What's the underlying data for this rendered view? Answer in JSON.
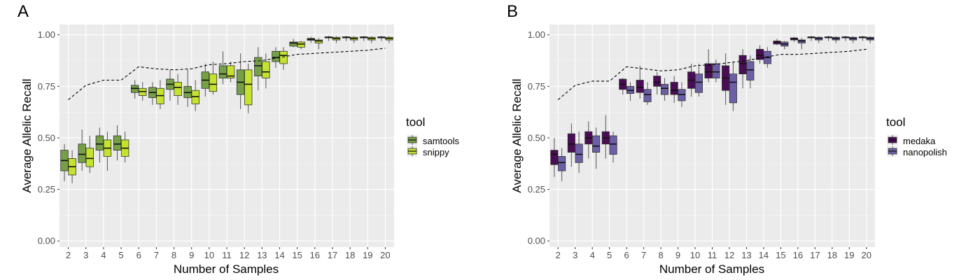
{
  "chart_data": [
    {
      "type": "box",
      "panel_label": "A",
      "xlabel": "Number of Samples",
      "ylabel": "Average Allelic Recall",
      "ylim": [
        -0.03,
        1.05
      ],
      "yticks": [
        "0.00",
        "0.25",
        "0.50",
        "0.75",
        "1.00"
      ],
      "categories": [
        "2",
        "3",
        "4",
        "5",
        "6",
        "7",
        "8",
        "9",
        "10",
        "11",
        "12",
        "13",
        "14",
        "15",
        "16",
        "17",
        "18",
        "19",
        "20"
      ],
      "legend": {
        "title": "tool",
        "placement": "right"
      },
      "series": [
        {
          "name": "samtools",
          "color": "#76a045",
          "boxes": [
            {
              "min": 0.29,
              "q1": 0.34,
              "median": 0.39,
              "q3": 0.44,
              "max": 0.47
            },
            {
              "min": 0.34,
              "q1": 0.38,
              "median": 0.42,
              "q3": 0.47,
              "max": 0.54
            },
            {
              "min": 0.38,
              "q1": 0.44,
              "median": 0.47,
              "q3": 0.51,
              "max": 0.55
            },
            {
              "min": 0.39,
              "q1": 0.44,
              "median": 0.47,
              "q3": 0.51,
              "max": 0.56
            },
            {
              "min": 0.69,
              "q1": 0.72,
              "median": 0.74,
              "q3": 0.755,
              "max": 0.78
            },
            {
              "min": 0.66,
              "q1": 0.695,
              "median": 0.72,
              "q3": 0.745,
              "max": 0.77
            },
            {
              "min": 0.68,
              "q1": 0.735,
              "median": 0.76,
              "q3": 0.785,
              "max": 0.83
            },
            {
              "min": 0.65,
              "q1": 0.695,
              "median": 0.72,
              "q3": 0.75,
              "max": 0.83
            },
            {
              "min": 0.7,
              "q1": 0.74,
              "median": 0.78,
              "q3": 0.82,
              "max": 0.86
            },
            {
              "min": 0.76,
              "q1": 0.79,
              "median": 0.81,
              "q3": 0.85,
              "max": 0.92
            },
            {
              "min": 0.64,
              "q1": 0.71,
              "median": 0.77,
              "q3": 0.83,
              "max": 0.91
            },
            {
              "min": 0.73,
              "q1": 0.8,
              "median": 0.85,
              "q3": 0.89,
              "max": 0.94
            },
            {
              "min": 0.84,
              "q1": 0.87,
              "median": 0.89,
              "q3": 0.92,
              "max": 0.94
            },
            {
              "min": 0.94,
              "q1": 0.945,
              "median": 0.96,
              "q3": 0.965,
              "max": 0.98
            },
            {
              "min": 0.96,
              "q1": 0.973,
              "median": 0.978,
              "q3": 0.983,
              "max": 0.99
            },
            {
              "min": 0.97,
              "q1": 0.985,
              "median": 0.988,
              "q3": 0.99,
              "max": 0.995
            },
            {
              "min": 0.97,
              "q1": 0.985,
              "median": 0.988,
              "q3": 0.99,
              "max": 0.995
            },
            {
              "min": 0.97,
              "q1": 0.985,
              "median": 0.988,
              "q3": 0.99,
              "max": 0.995
            },
            {
              "min": 0.97,
              "q1": 0.985,
              "median": 0.988,
              "q3": 0.99,
              "max": 0.995
            }
          ]
        },
        {
          "name": "snippy",
          "color": "#c5e32e",
          "boxes": [
            {
              "min": 0.28,
              "q1": 0.32,
              "median": 0.36,
              "q3": 0.4,
              "max": 0.44
            },
            {
              "min": 0.33,
              "q1": 0.36,
              "median": 0.4,
              "q3": 0.45,
              "max": 0.51
            },
            {
              "min": 0.34,
              "q1": 0.41,
              "median": 0.45,
              "q3": 0.49,
              "max": 0.53
            },
            {
              "min": 0.38,
              "q1": 0.41,
              "median": 0.45,
              "q3": 0.49,
              "max": 0.53
            },
            {
              "min": 0.68,
              "q1": 0.705,
              "median": 0.725,
              "q3": 0.74,
              "max": 0.77
            },
            {
              "min": 0.64,
              "q1": 0.665,
              "median": 0.705,
              "q3": 0.74,
              "max": 0.78
            },
            {
              "min": 0.66,
              "q1": 0.705,
              "median": 0.745,
              "q3": 0.77,
              "max": 0.81
            },
            {
              "min": 0.63,
              "q1": 0.665,
              "median": 0.7,
              "q3": 0.73,
              "max": 0.78
            },
            {
              "min": 0.71,
              "q1": 0.725,
              "median": 0.76,
              "q3": 0.81,
              "max": 0.87
            },
            {
              "min": 0.77,
              "q1": 0.79,
              "median": 0.8,
              "q3": 0.85,
              "max": 0.87
            },
            {
              "min": 0.62,
              "q1": 0.66,
              "median": 0.76,
              "q3": 0.83,
              "max": 0.86
            },
            {
              "min": 0.74,
              "q1": 0.79,
              "median": 0.82,
              "q3": 0.87,
              "max": 0.91
            },
            {
              "min": 0.83,
              "q1": 0.86,
              "median": 0.9,
              "q3": 0.92,
              "max": 0.94
            },
            {
              "min": 0.93,
              "q1": 0.94,
              "median": 0.955,
              "q3": 0.965,
              "max": 0.97
            },
            {
              "min": 0.93,
              "q1": 0.96,
              "median": 0.97,
              "q3": 0.975,
              "max": 0.985
            },
            {
              "min": 0.96,
              "q1": 0.975,
              "median": 0.982,
              "q3": 0.988,
              "max": 0.993
            },
            {
              "min": 0.96,
              "q1": 0.975,
              "median": 0.982,
              "q3": 0.988,
              "max": 0.993
            },
            {
              "min": 0.96,
              "q1": 0.975,
              "median": 0.982,
              "q3": 0.988,
              "max": 0.993
            },
            {
              "min": 0.96,
              "q1": 0.975,
              "median": 0.982,
              "q3": 0.988,
              "max": 0.993
            }
          ]
        }
      ],
      "reference_line": {
        "style": "dashed",
        "values": [
          0.685,
          0.755,
          0.78,
          0.78,
          0.845,
          0.835,
          0.83,
          0.835,
          0.855,
          0.86,
          0.87,
          0.875,
          0.89,
          0.905,
          0.91,
          0.915,
          0.92,
          0.925,
          0.935
        ]
      }
    },
    {
      "type": "box",
      "panel_label": "B",
      "xlabel": "Number of Samples",
      "ylabel": "Average Allelic Recall",
      "ylim": [
        -0.03,
        1.05
      ],
      "yticks": [
        "0.00",
        "0.25",
        "0.50",
        "0.75",
        "1.00"
      ],
      "categories": [
        "2",
        "3",
        "4",
        "5",
        "6",
        "7",
        "8",
        "9",
        "10",
        "11",
        "12",
        "13",
        "14",
        "15",
        "16",
        "17",
        "18",
        "19",
        "20"
      ],
      "legend": {
        "title": "tool",
        "placement": "right"
      },
      "series": [
        {
          "name": "medaka",
          "color": "#4a0c55",
          "boxes": [
            {
              "min": 0.31,
              "q1": 0.37,
              "median": 0.42,
              "q3": 0.44,
              "max": 0.5
            },
            {
              "min": 0.36,
              "q1": 0.43,
              "median": 0.47,
              "q3": 0.52,
              "max": 0.57
            },
            {
              "min": 0.4,
              "q1": 0.47,
              "median": 0.5,
              "q3": 0.53,
              "max": 0.58
            },
            {
              "min": 0.4,
              "q1": 0.47,
              "median": 0.5,
              "q3": 0.53,
              "max": 0.61
            },
            {
              "min": 0.71,
              "q1": 0.735,
              "median": 0.76,
              "q3": 0.785,
              "max": 0.79
            },
            {
              "min": 0.69,
              "q1": 0.72,
              "median": 0.745,
              "q3": 0.78,
              "max": 0.85
            },
            {
              "min": 0.71,
              "q1": 0.75,
              "median": 0.77,
              "q3": 0.8,
              "max": 0.82
            },
            {
              "min": 0.67,
              "q1": 0.71,
              "median": 0.73,
              "q3": 0.77,
              "max": 0.8
            },
            {
              "min": 0.7,
              "q1": 0.74,
              "median": 0.78,
              "q3": 0.82,
              "max": 0.86
            },
            {
              "min": 0.77,
              "q1": 0.79,
              "median": 0.82,
              "q3": 0.86,
              "max": 0.93
            },
            {
              "min": 0.66,
              "q1": 0.73,
              "median": 0.79,
              "q3": 0.85,
              "max": 0.91
            },
            {
              "min": 0.74,
              "q1": 0.81,
              "median": 0.86,
              "q3": 0.9,
              "max": 0.93
            },
            {
              "min": 0.86,
              "q1": 0.88,
              "median": 0.9,
              "q3": 0.93,
              "max": 0.95
            },
            {
              "min": 0.95,
              "q1": 0.955,
              "median": 0.965,
              "q3": 0.97,
              "max": 0.98
            },
            {
              "min": 0.965,
              "q1": 0.975,
              "median": 0.98,
              "q3": 0.985,
              "max": 0.99
            },
            {
              "min": 0.97,
              "q1": 0.985,
              "median": 0.988,
              "q3": 0.99,
              "max": 0.995
            },
            {
              "min": 0.97,
              "q1": 0.985,
              "median": 0.988,
              "q3": 0.99,
              "max": 0.995
            },
            {
              "min": 0.97,
              "q1": 0.985,
              "median": 0.988,
              "q3": 0.99,
              "max": 0.995
            },
            {
              "min": 0.97,
              "q1": 0.985,
              "median": 0.988,
              "q3": 0.99,
              "max": 0.995
            }
          ]
        },
        {
          "name": "nanopolish",
          "color": "#6d5fa6",
          "boxes": [
            {
              "min": 0.29,
              "q1": 0.34,
              "median": 0.38,
              "q3": 0.41,
              "max": 0.45
            },
            {
              "min": 0.33,
              "q1": 0.38,
              "median": 0.42,
              "q3": 0.47,
              "max": 0.53
            },
            {
              "min": 0.35,
              "q1": 0.43,
              "median": 0.46,
              "q3": 0.51,
              "max": 0.55
            },
            {
              "min": 0.38,
              "q1": 0.42,
              "median": 0.47,
              "q3": 0.51,
              "max": 0.53
            },
            {
              "min": 0.68,
              "q1": 0.715,
              "median": 0.73,
              "q3": 0.75,
              "max": 0.77
            },
            {
              "min": 0.66,
              "q1": 0.675,
              "median": 0.71,
              "q3": 0.735,
              "max": 0.77
            },
            {
              "min": 0.68,
              "q1": 0.71,
              "median": 0.74,
              "q3": 0.76,
              "max": 0.79
            },
            {
              "min": 0.65,
              "q1": 0.68,
              "median": 0.71,
              "q3": 0.735,
              "max": 0.77
            },
            {
              "min": 0.7,
              "q1": 0.72,
              "median": 0.77,
              "q3": 0.81,
              "max": 0.86
            },
            {
              "min": 0.77,
              "q1": 0.79,
              "median": 0.82,
              "q3": 0.86,
              "max": 0.88
            },
            {
              "min": 0.63,
              "q1": 0.67,
              "median": 0.77,
              "q3": 0.81,
              "max": 0.87
            },
            {
              "min": 0.74,
              "q1": 0.78,
              "median": 0.83,
              "q3": 0.87,
              "max": 0.9
            },
            {
              "min": 0.84,
              "q1": 0.86,
              "median": 0.89,
              "q3": 0.92,
              "max": 0.94
            },
            {
              "min": 0.93,
              "q1": 0.945,
              "median": 0.955,
              "q3": 0.965,
              "max": 0.97
            },
            {
              "min": 0.93,
              "q1": 0.96,
              "median": 0.97,
              "q3": 0.975,
              "max": 0.985
            },
            {
              "min": 0.96,
              "q1": 0.975,
              "median": 0.982,
              "q3": 0.988,
              "max": 0.993
            },
            {
              "min": 0.96,
              "q1": 0.975,
              "median": 0.982,
              "q3": 0.988,
              "max": 0.993
            },
            {
              "min": 0.96,
              "q1": 0.975,
              "median": 0.982,
              "q3": 0.988,
              "max": 0.993
            },
            {
              "min": 0.96,
              "q1": 0.975,
              "median": 0.982,
              "q3": 0.988,
              "max": 0.993
            }
          ]
        }
      ],
      "reference_line": {
        "style": "dashed",
        "values": [
          0.685,
          0.755,
          0.775,
          0.775,
          0.845,
          0.835,
          0.825,
          0.83,
          0.85,
          0.855,
          0.865,
          0.875,
          0.89,
          0.905,
          0.905,
          0.91,
          0.915,
          0.92,
          0.93
        ]
      }
    }
  ]
}
